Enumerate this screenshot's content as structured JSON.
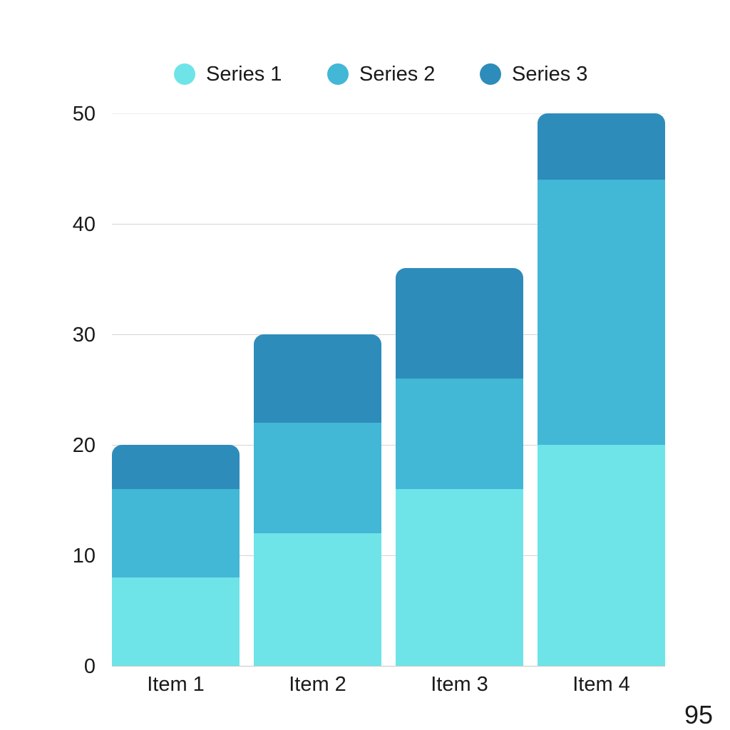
{
  "chart_data": {
    "type": "bar",
    "stacked": true,
    "title": "",
    "xlabel": "",
    "ylabel": "",
    "categories": [
      "Item 1",
      "Item 2",
      "Item 3",
      "Item 4"
    ],
    "series": [
      {
        "name": "Series 1",
        "color": "#6ee4e8",
        "values": [
          8,
          12,
          16,
          20
        ]
      },
      {
        "name": "Series 2",
        "color": "#42b7d6",
        "values": [
          8,
          10,
          10,
          24
        ]
      },
      {
        "name": "Series 3",
        "color": "#2d8cba",
        "values": [
          4,
          8,
          10,
          6
        ]
      }
    ],
    "totals": [
      20,
      30,
      36,
      50
    ],
    "ylim": [
      0,
      50
    ],
    "yticks": [
      "0",
      "10",
      "20",
      "30",
      "40",
      "50"
    ],
    "grid": true,
    "legend_position": "top"
  },
  "legend": {
    "items": [
      {
        "label": "Series 1",
        "color": "#6ee4e8"
      },
      {
        "label": "Series 2",
        "color": "#42b7d6"
      },
      {
        "label": "Series 3",
        "color": "#2d8cba"
      }
    ]
  },
  "axis": {
    "y_ticks": [
      "50",
      "40",
      "30",
      "20",
      "10",
      "0"
    ],
    "x_ticks": [
      "Item 1",
      "Item 2",
      "Item 3",
      "Item 4"
    ]
  },
  "page_number": "95"
}
